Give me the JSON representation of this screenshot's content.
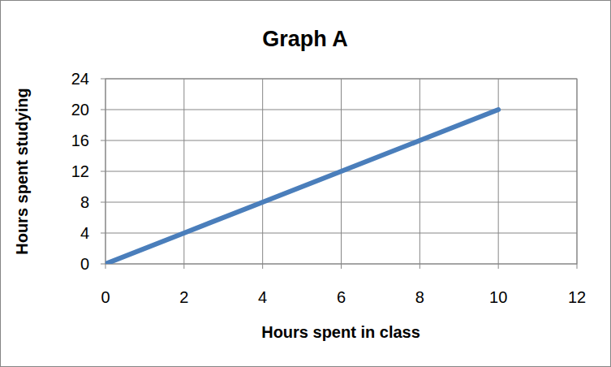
{
  "chart_data": {
    "type": "line",
    "title": "Graph A",
    "x_label": "Hours spent in class",
    "y_label": "Hours spent studying",
    "x": [
      0,
      2,
      4,
      6,
      8,
      10
    ],
    "values": [
      0,
      4,
      8,
      12,
      16,
      20
    ],
    "color": "#4a7ebb",
    "xlim": [
      0,
      12
    ],
    "xticks": [
      0,
      2,
      4,
      6,
      8,
      10,
      12
    ],
    "ylim": [
      0,
      24
    ],
    "yticks": [
      0,
      4,
      8,
      12,
      16,
      20,
      24
    ],
    "grid": true
  }
}
